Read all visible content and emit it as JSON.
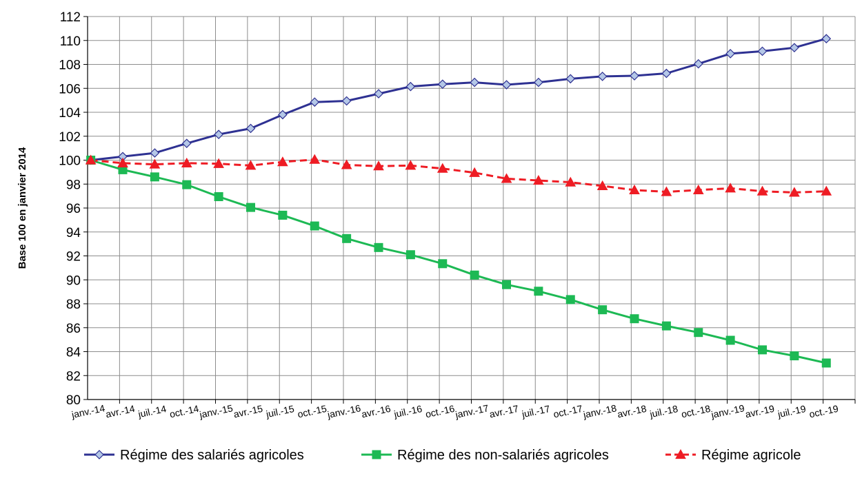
{
  "chart_data": {
    "type": "line",
    "title": "",
    "xlabel": "",
    "ylabel": "Base 100 en janvier 2014",
    "ylim": [
      80,
      112
    ],
    "yticks": [
      80,
      82,
      84,
      86,
      88,
      90,
      92,
      94,
      96,
      98,
      100,
      102,
      104,
      106,
      108,
      110,
      112
    ],
    "grid": true,
    "legend_position": "bottom",
    "categories": [
      "janv.-14",
      "avr.-14",
      "juil.-14",
      "oct.-14",
      "janv.-15",
      "avr.-15",
      "juil.-15",
      "oct.-15",
      "janv.-16",
      "avr.-16",
      "juil.-16",
      "oct.-16",
      "janv.-17",
      "avr.-17",
      "juil.-17",
      "oct.-17",
      "janv.-18",
      "avr.-18",
      "juil.-18",
      "oct.-18",
      "janv.-19",
      "avr.-19",
      "juil.-19",
      "oct.-19"
    ],
    "series": [
      {
        "name": "Régime des salariés agricoles",
        "color": "#2e3192",
        "marker": "diamond",
        "marker_fill": "#b4c7e7",
        "line_style": "solid",
        "values": [
          100.0,
          100.3,
          100.6,
          101.4,
          102.15,
          102.65,
          103.8,
          104.85,
          104.95,
          105.55,
          106.15,
          106.35,
          106.5,
          106.3,
          106.5,
          106.8,
          107.0,
          107.05,
          107.25,
          108.05,
          108.9,
          109.1,
          109.4,
          110.15
        ]
      },
      {
        "name": "Régime des non-salariés agricoles",
        "color": "#1db954",
        "marker": "square",
        "marker_fill": "#1db954",
        "line_style": "solid",
        "values": [
          100.0,
          99.2,
          98.6,
          97.95,
          96.95,
          96.05,
          95.4,
          94.5,
          93.45,
          92.7,
          92.1,
          91.35,
          90.4,
          89.6,
          89.05,
          88.35,
          87.5,
          86.75,
          86.15,
          85.6,
          84.95,
          84.15,
          83.65,
          83.05
        ]
      },
      {
        "name": "Régime agricole",
        "color": "#ee1c24",
        "marker": "triangle",
        "marker_fill": "#ee1c24",
        "line_style": "dashed",
        "values": [
          100.0,
          99.75,
          99.65,
          99.75,
          99.7,
          99.55,
          99.85,
          100.05,
          99.6,
          99.5,
          99.55,
          99.3,
          98.95,
          98.45,
          98.3,
          98.15,
          97.85,
          97.5,
          97.35,
          97.5,
          97.65,
          97.4,
          97.3,
          97.4
        ]
      }
    ]
  }
}
